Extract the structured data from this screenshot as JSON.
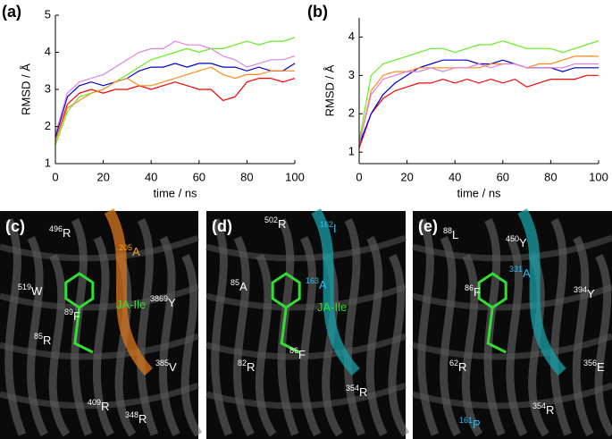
{
  "chart_data": [
    {
      "type": "line",
      "panel_label": "(a)",
      "y_label": "RMSD / Å",
      "x_label": "time / ns",
      "x": [
        0,
        5,
        10,
        15,
        20,
        25,
        30,
        35,
        40,
        45,
        50,
        55,
        60,
        65,
        70,
        75,
        80,
        85,
        90,
        95,
        100
      ],
      "xlim": [
        0,
        100
      ],
      "xticks": [
        0,
        20,
        40,
        60,
        80,
        100
      ],
      "ylim": [
        1,
        5
      ],
      "yticks": [
        1,
        2,
        3,
        4,
        5
      ],
      "series": [
        {
          "color": "#ff0000",
          "values": [
            1.6,
            2.6,
            2.9,
            3.0,
            2.9,
            3.0,
            3.0,
            3.1,
            3.0,
            3.1,
            3.2,
            3.1,
            3.0,
            3.0,
            2.7,
            2.8,
            3.2,
            3.3,
            3.3,
            3.2,
            3.3
          ]
        },
        {
          "color": "#0000cc",
          "values": [
            1.7,
            2.8,
            3.1,
            3.2,
            3.1,
            3.2,
            3.3,
            3.5,
            3.6,
            3.6,
            3.7,
            3.6,
            3.7,
            3.7,
            3.6,
            3.6,
            3.5,
            3.6,
            3.5,
            3.5,
            3.7
          ]
        },
        {
          "color": "#66ee22",
          "values": [
            1.5,
            2.4,
            2.8,
            2.9,
            3.0,
            3.2,
            3.4,
            3.6,
            3.8,
            3.9,
            4.0,
            4.1,
            4.0,
            4.1,
            4.1,
            4.2,
            4.3,
            4.2,
            4.3,
            4.3,
            4.4
          ]
        },
        {
          "color": "#ff8c1a",
          "values": [
            1.6,
            2.5,
            2.7,
            2.9,
            3.0,
            3.2,
            3.3,
            3.1,
            3.1,
            3.2,
            3.3,
            3.4,
            3.5,
            3.6,
            3.4,
            3.3,
            3.4,
            3.4,
            3.5,
            3.5,
            3.5
          ]
        },
        {
          "color": "#e080e0",
          "values": [
            1.8,
            2.9,
            3.2,
            3.3,
            3.4,
            3.6,
            3.8,
            4.0,
            4.1,
            4.1,
            4.3,
            4.2,
            4.2,
            4.1,
            3.9,
            3.8,
            3.6,
            3.7,
            3.8,
            3.8,
            3.9
          ]
        }
      ]
    },
    {
      "type": "line",
      "panel_label": "(b)",
      "y_label": "RMSD / Å",
      "x_label": "time / ns",
      "x": [
        0,
        5,
        10,
        15,
        20,
        25,
        30,
        35,
        40,
        45,
        50,
        55,
        60,
        65,
        70,
        75,
        80,
        85,
        90,
        95,
        100
      ],
      "xlim": [
        0,
        100
      ],
      "xticks": [
        0,
        20,
        40,
        60,
        80,
        100
      ],
      "ylim": [
        0.7,
        4.5
      ],
      "yticks": [
        1,
        2,
        3,
        4
      ],
      "series": [
        {
          "color": "#ff0000",
          "values": [
            1.1,
            2.0,
            2.4,
            2.6,
            2.7,
            2.8,
            2.8,
            2.9,
            2.8,
            2.9,
            2.8,
            2.9,
            2.8,
            2.9,
            2.7,
            2.8,
            2.9,
            2.9,
            2.9,
            3.0,
            3.0
          ]
        },
        {
          "color": "#0000cc",
          "values": [
            1.2,
            2.0,
            2.5,
            2.8,
            3.0,
            3.2,
            3.3,
            3.4,
            3.4,
            3.4,
            3.3,
            3.3,
            3.4,
            3.3,
            3.2,
            3.2,
            3.2,
            3.1,
            3.2,
            3.2,
            3.2
          ]
        },
        {
          "color": "#66ee22",
          "values": [
            1.3,
            3.0,
            3.3,
            3.4,
            3.5,
            3.6,
            3.7,
            3.7,
            3.6,
            3.7,
            3.8,
            3.8,
            3.9,
            3.8,
            3.7,
            3.7,
            3.7,
            3.6,
            3.7,
            3.8,
            3.9
          ]
        },
        {
          "color": "#ff8c1a",
          "values": [
            1.2,
            2.6,
            3.0,
            3.1,
            3.1,
            3.2,
            3.2,
            3.2,
            3.2,
            3.2,
            3.2,
            3.3,
            3.3,
            3.3,
            3.2,
            3.3,
            3.3,
            3.4,
            3.5,
            3.5,
            3.5
          ]
        },
        {
          "color": "#e080e0",
          "values": [
            1.2,
            2.5,
            2.9,
            3.0,
            3.1,
            3.1,
            3.2,
            3.1,
            3.2,
            3.2,
            3.3,
            3.2,
            3.3,
            3.3,
            3.2,
            3.2,
            3.2,
            3.2,
            3.3,
            3.3,
            3.3
          ]
        }
      ]
    }
  ],
  "panels": [
    {
      "label": "(c)",
      "annotations": [
        {
          "sup": "496",
          "text": "R",
          "color": "#ffffff"
        },
        {
          "sup": "205",
          "text": "A",
          "color": "#f5a623"
        },
        {
          "sup": "519",
          "text": "W",
          "color": "#ffffff"
        },
        {
          "sup": "89",
          "text": "F",
          "color": "#ffffff"
        },
        {
          "sup": "",
          "text": "JA-Ile",
          "color": "#33dd33"
        },
        {
          "sup": "3869",
          "text": "Y",
          "color": "#ffffff"
        },
        {
          "sup": "85",
          "text": "R",
          "color": "#ffffff"
        },
        {
          "sup": "385",
          "text": "V",
          "color": "#ffffff"
        },
        {
          "sup": "409",
          "text": "R",
          "color": "#ffffff"
        },
        {
          "sup": "348",
          "text": "R",
          "color": "#ffffff"
        }
      ]
    },
    {
      "label": "(d)",
      "annotations": [
        {
          "sup": "502",
          "text": "R",
          "color": "#ffffff"
        },
        {
          "sup": "162",
          "text": "I",
          "color": "#33bbee"
        },
        {
          "sup": "85",
          "text": "A",
          "color": "#ffffff"
        },
        {
          "sup": "163",
          "text": "A",
          "color": "#33bbee"
        },
        {
          "sup": "",
          "text": "JA-Ile",
          "color": "#33dd33"
        },
        {
          "sup": "86",
          "text": "F",
          "color": "#ffffff"
        },
        {
          "sup": "82",
          "text": "R",
          "color": "#ffffff"
        },
        {
          "sup": "354",
          "text": "R",
          "color": "#ffffff"
        }
      ]
    },
    {
      "label": "(e)",
      "annotations": [
        {
          "sup": "88",
          "text": "L",
          "color": "#ffffff"
        },
        {
          "sup": "450",
          "text": "Y",
          "color": "#ffffff"
        },
        {
          "sup": "331",
          "text": "A",
          "color": "#33bbee"
        },
        {
          "sup": "394",
          "text": "Y",
          "color": "#ffffff"
        },
        {
          "sup": "86",
          "text": "F",
          "color": "#ffffff"
        },
        {
          "sup": "62",
          "text": "R",
          "color": "#ffffff"
        },
        {
          "sup": "356",
          "text": "E",
          "color": "#ffffff"
        },
        {
          "sup": "354",
          "text": "R",
          "color": "#ffffff"
        },
        {
          "sup": "161",
          "text": "P",
          "color": "#33bbee"
        }
      ]
    }
  ]
}
